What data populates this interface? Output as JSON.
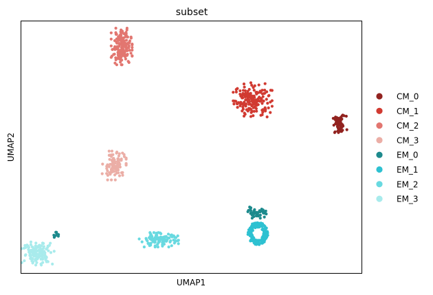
{
  "chart_data": {
    "type": "scatter",
    "title": "subset",
    "xlabel": "UMAP1",
    "ylabel": "UMAP2",
    "xlim": [
      0,
      100
    ],
    "ylim": [
      0,
      100
    ],
    "grid": false,
    "ticks": false,
    "legend_placement": "right-outside",
    "series": [
      {
        "name": "CM_0",
        "color": "#922320",
        "clusters": [
          {
            "cx": 93.5,
            "cy": 58.8,
            "sx": 1.0,
            "sy": 1.8,
            "n": 60,
            "shape": "blob"
          }
        ]
      },
      {
        "name": "CM_1",
        "color": "#d13a31",
        "clusters": [
          {
            "cx": 68.0,
            "cy": 68.8,
            "sx": 2.6,
            "sy": 3.2,
            "n": 170,
            "shape": "blob"
          }
        ]
      },
      {
        "name": "CM_2",
        "color": "#e27670",
        "clusters": [
          {
            "cx": 29.5,
            "cy": 90.0,
            "sx": 1.4,
            "sy": 3.3,
            "n": 170,
            "shape": "blob"
          }
        ]
      },
      {
        "name": "CM_3",
        "color": "#ebaea6",
        "clusters": [
          {
            "cx": 27.3,
            "cy": 42.7,
            "sx": 1.6,
            "sy": 2.6,
            "n": 110,
            "shape": "blob"
          }
        ]
      },
      {
        "name": "EM_0",
        "color": "#1d8a8d",
        "clusters": [
          {
            "cx": 69.5,
            "cy": 24.0,
            "sx": 1.4,
            "sy": 1.0,
            "n": 45,
            "shape": "blob"
          },
          {
            "cx": 10.3,
            "cy": 14.7,
            "sx": 0.4,
            "sy": 0.8,
            "n": 8,
            "shape": "blob"
          }
        ]
      },
      {
        "name": "EM_1",
        "color": "#2ec1d1",
        "clusters": [
          {
            "cx": 69.5,
            "cy": 15.7,
            "sx": 2.0,
            "sy": 3.0,
            "n": 150,
            "shape": "ring"
          }
        ]
      },
      {
        "name": "EM_2",
        "color": "#68d9e0",
        "clusters": [
          {
            "cx": 40.5,
            "cy": 13.2,
            "sx": 2.7,
            "sy": 1.3,
            "n": 110,
            "shape": "blob"
          }
        ]
      },
      {
        "name": "EM_3",
        "color": "#a8ebec",
        "clusters": [
          {
            "cx": 5.0,
            "cy": 8.0,
            "sx": 2.2,
            "sy": 2.2,
            "n": 130,
            "shape": "blob"
          }
        ]
      }
    ]
  }
}
